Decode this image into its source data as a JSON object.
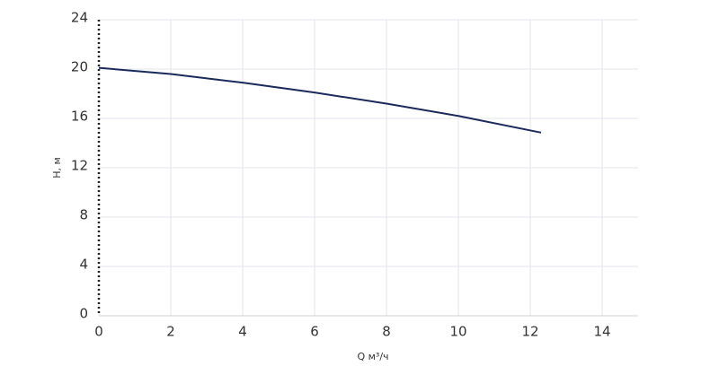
{
  "chart_data": {
    "type": "line",
    "x_label": "Q м³/ч",
    "y_label": "H, м",
    "xlim": [
      0,
      15
    ],
    "ylim": [
      0,
      24
    ],
    "xticks": [
      0,
      2,
      4,
      6,
      8,
      10,
      12,
      14
    ],
    "yticks": [
      0,
      4,
      8,
      12,
      16,
      20,
      24
    ],
    "grid": true,
    "x": [
      0,
      2,
      4,
      6,
      8,
      10,
      12.3
    ],
    "series": [
      {
        "color": "#1b2a5c",
        "values": [
          20.1,
          19.6,
          18.9,
          18.1,
          17.2,
          16.2,
          14.85
        ]
      }
    ]
  }
}
